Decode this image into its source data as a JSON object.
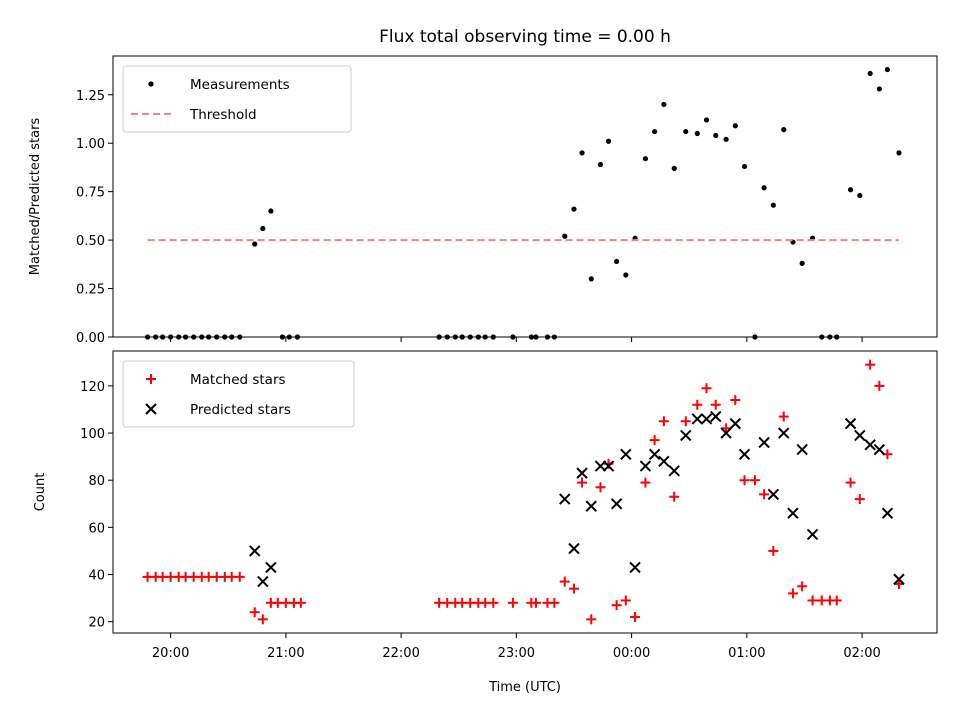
{
  "title": "Flux total observing time = 0.00 h",
  "x_axis": {
    "label": "Time (UTC)",
    "ticks": [
      {
        "t": 20,
        "label": "20:00"
      },
      {
        "t": 21,
        "label": "21:00"
      },
      {
        "t": 22,
        "label": "22:00"
      },
      {
        "t": 23,
        "label": "23:00"
      },
      {
        "t": 24,
        "label": "00:00"
      },
      {
        "t": 25,
        "label": "01:00"
      },
      {
        "t": 26,
        "label": "02:00"
      }
    ],
    "xlim": [
      19.5,
      26.65
    ]
  },
  "chart_data": [
    {
      "type": "scatter",
      "ylabel": "Matched/Predicted stars",
      "ylim": [
        0,
        1.45
      ],
      "yticks": [
        "0.00",
        "0.25",
        "0.50",
        "0.75",
        "1.00",
        "1.25"
      ],
      "ytick_values": [
        0,
        0.25,
        0.5,
        0.75,
        1.0,
        1.25
      ],
      "legend_position": "upper left",
      "series": [
        {
          "name": "Measurements",
          "marker": "dot",
          "color": "#000000",
          "points": [
            [
              19.8,
              0
            ],
            [
              19.87,
              0
            ],
            [
              19.93,
              0
            ],
            [
              20.0,
              0
            ],
            [
              20.07,
              0
            ],
            [
              20.13,
              0
            ],
            [
              20.2,
              0
            ],
            [
              20.27,
              0
            ],
            [
              20.33,
              0
            ],
            [
              20.4,
              0
            ],
            [
              20.47,
              0
            ],
            [
              20.53,
              0
            ],
            [
              20.6,
              0
            ],
            [
              20.73,
              0.48
            ],
            [
              20.8,
              0.56
            ],
            [
              20.87,
              0.65
            ],
            [
              20.97,
              0
            ],
            [
              21.03,
              0
            ],
            [
              21.1,
              0
            ],
            [
              22.33,
              0
            ],
            [
              22.4,
              0
            ],
            [
              22.47,
              0
            ],
            [
              22.53,
              0
            ],
            [
              22.6,
              0
            ],
            [
              22.67,
              0
            ],
            [
              22.73,
              0
            ],
            [
              22.8,
              0
            ],
            [
              22.97,
              0
            ],
            [
              23.13,
              0
            ],
            [
              23.17,
              0
            ],
            [
              23.27,
              0
            ],
            [
              23.33,
              0
            ],
            [
              23.42,
              0.52
            ],
            [
              23.5,
              0.66
            ],
            [
              23.57,
              0.95
            ],
            [
              23.65,
              0.3
            ],
            [
              23.73,
              0.89
            ],
            [
              23.8,
              1.01
            ],
            [
              23.87,
              0.39
            ],
            [
              23.95,
              0.32
            ],
            [
              24.03,
              0.51
            ],
            [
              24.12,
              0.92
            ],
            [
              24.2,
              1.06
            ],
            [
              24.28,
              1.2
            ],
            [
              24.37,
              0.87
            ],
            [
              24.47,
              1.06
            ],
            [
              24.57,
              1.05
            ],
            [
              24.65,
              1.12
            ],
            [
              24.73,
              1.04
            ],
            [
              24.82,
              1.02
            ],
            [
              24.9,
              1.09
            ],
            [
              24.98,
              0.88
            ],
            [
              25.07,
              0
            ],
            [
              25.15,
              0.77
            ],
            [
              25.23,
              0.68
            ],
            [
              25.32,
              1.07
            ],
            [
              25.4,
              0.49
            ],
            [
              25.48,
              0.38
            ],
            [
              25.57,
              0.51
            ],
            [
              25.65,
              0
            ],
            [
              25.72,
              0
            ],
            [
              25.78,
              0
            ],
            [
              25.9,
              0.76
            ],
            [
              25.98,
              0.73
            ],
            [
              26.07,
              1.36
            ],
            [
              26.15,
              1.28
            ],
            [
              26.22,
              1.38
            ],
            [
              26.32,
              0.95
            ]
          ]
        },
        {
          "name": "Threshold",
          "marker": "dashed-line",
          "color": "#ff7f7f",
          "points": [
            [
              19.8,
              0.5
            ],
            [
              26.32,
              0.5
            ]
          ]
        }
      ]
    },
    {
      "type": "scatter",
      "ylabel": "Count",
      "ylim": [
        15.2,
        134.8
      ],
      "yticks": [
        "20",
        "40",
        "60",
        "80",
        "100",
        "120"
      ],
      "ytick_values": [
        20,
        40,
        60,
        80,
        100,
        120
      ],
      "legend_position": "upper left",
      "series": [
        {
          "name": "Matched stars",
          "marker": "plus",
          "color": "#ff0000",
          "points": [
            [
              19.8,
              39
            ],
            [
              19.87,
              39
            ],
            [
              19.93,
              39
            ],
            [
              20.0,
              39
            ],
            [
              20.07,
              39
            ],
            [
              20.13,
              39
            ],
            [
              20.2,
              39
            ],
            [
              20.27,
              39
            ],
            [
              20.33,
              39
            ],
            [
              20.4,
              39
            ],
            [
              20.47,
              39
            ],
            [
              20.53,
              39
            ],
            [
              20.6,
              39
            ],
            [
              20.73,
              24
            ],
            [
              20.8,
              21
            ],
            [
              20.87,
              28
            ],
            [
              20.93,
              28
            ],
            [
              21.0,
              28
            ],
            [
              21.07,
              28
            ],
            [
              21.13,
              28
            ],
            [
              22.33,
              28
            ],
            [
              22.4,
              28
            ],
            [
              22.47,
              28
            ],
            [
              22.53,
              28
            ],
            [
              22.6,
              28
            ],
            [
              22.67,
              28
            ],
            [
              22.73,
              28
            ],
            [
              22.8,
              28
            ],
            [
              22.97,
              28
            ],
            [
              23.13,
              28
            ],
            [
              23.17,
              28
            ],
            [
              23.27,
              28
            ],
            [
              23.33,
              28
            ],
            [
              23.42,
              37
            ],
            [
              23.5,
              34
            ],
            [
              23.57,
              79
            ],
            [
              23.65,
              21
            ],
            [
              23.73,
              77
            ],
            [
              23.8,
              87
            ],
            [
              23.87,
              27
            ],
            [
              23.95,
              29
            ],
            [
              24.03,
              22
            ],
            [
              24.12,
              79
            ],
            [
              24.2,
              97
            ],
            [
              24.28,
              105
            ],
            [
              24.37,
              73
            ],
            [
              24.47,
              105
            ],
            [
              24.57,
              112
            ],
            [
              24.65,
              119
            ],
            [
              24.73,
              112
            ],
            [
              24.82,
              102
            ],
            [
              24.9,
              114
            ],
            [
              24.98,
              80
            ],
            [
              25.07,
              80
            ],
            [
              25.15,
              74
            ],
            [
              25.23,
              50
            ],
            [
              25.32,
              107
            ],
            [
              25.4,
              32
            ],
            [
              25.48,
              35
            ],
            [
              25.57,
              29
            ],
            [
              25.65,
              29
            ],
            [
              25.72,
              29
            ],
            [
              25.78,
              29
            ],
            [
              25.9,
              79
            ],
            [
              25.98,
              72
            ],
            [
              26.07,
              129
            ],
            [
              26.15,
              120
            ],
            [
              26.22,
              91
            ],
            [
              26.32,
              36
            ]
          ]
        },
        {
          "name": "Predicted stars",
          "marker": "x",
          "color": "#000000",
          "points": [
            [
              20.73,
              50
            ],
            [
              20.8,
              37
            ],
            [
              20.87,
              43
            ],
            [
              23.42,
              72
            ],
            [
              23.5,
              51
            ],
            [
              23.57,
              83
            ],
            [
              23.65,
              69
            ],
            [
              23.73,
              86
            ],
            [
              23.8,
              86
            ],
            [
              23.87,
              70
            ],
            [
              23.95,
              91
            ],
            [
              24.03,
              43
            ],
            [
              24.12,
              86
            ],
            [
              24.2,
              91
            ],
            [
              24.28,
              88
            ],
            [
              24.37,
              84
            ],
            [
              24.47,
              99
            ],
            [
              24.57,
              106
            ],
            [
              24.65,
              106
            ],
            [
              24.73,
              107
            ],
            [
              24.82,
              100
            ],
            [
              24.9,
              104
            ],
            [
              24.98,
              91
            ],
            [
              25.15,
              96
            ],
            [
              25.23,
              74
            ],
            [
              25.32,
              100
            ],
            [
              25.4,
              66
            ],
            [
              25.48,
              93
            ],
            [
              25.57,
              57
            ],
            [
              25.9,
              104
            ],
            [
              25.98,
              99
            ],
            [
              26.07,
              95
            ],
            [
              26.15,
              93
            ],
            [
              26.22,
              66
            ],
            [
              26.32,
              38
            ]
          ]
        }
      ]
    }
  ]
}
